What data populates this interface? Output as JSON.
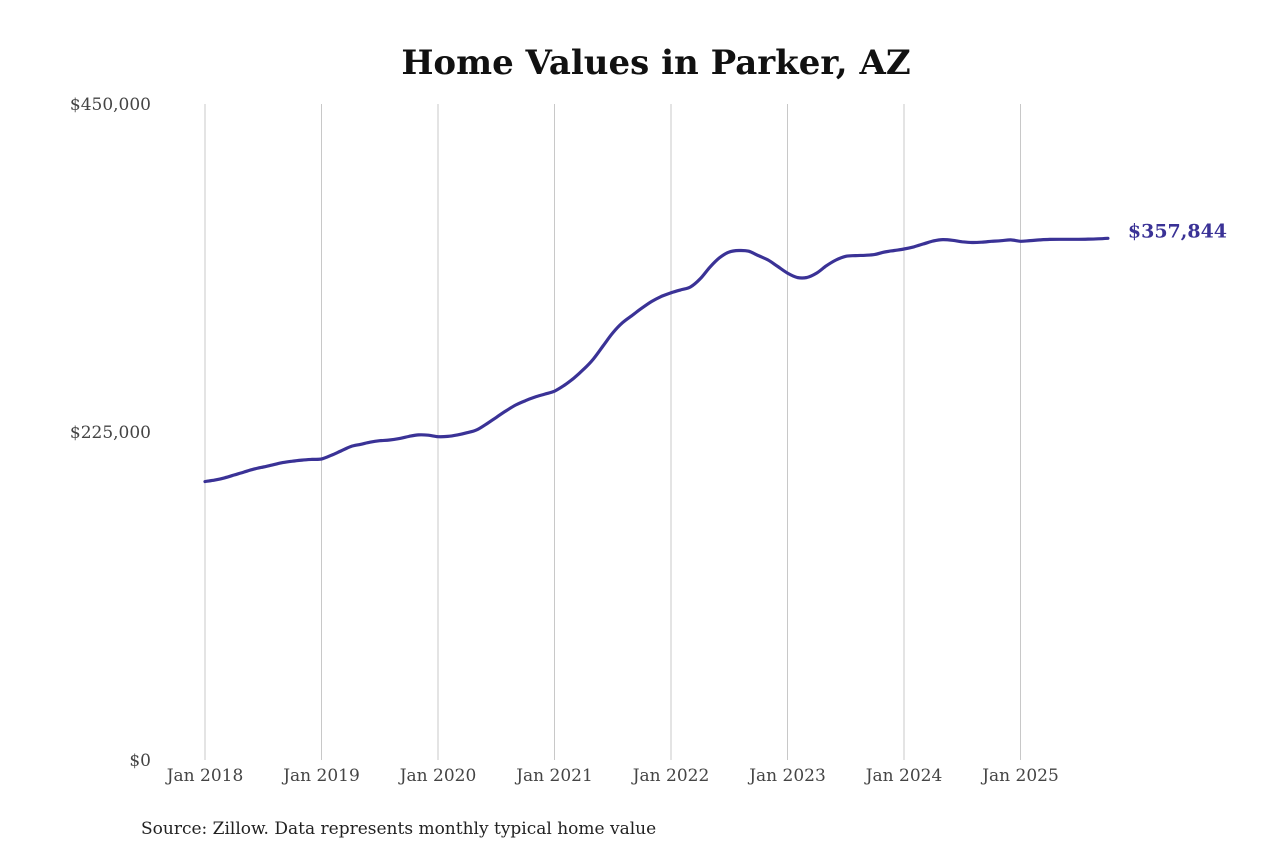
{
  "chart_data": {
    "type": "line",
    "title": "Home Values in Parker, AZ",
    "source": "Source: Zillow. Data represents monthly typical home value",
    "xlabel": "",
    "ylabel": "",
    "ylim": [
      0,
      450000
    ],
    "y_ticks": [
      0,
      225000,
      450000
    ],
    "y_tick_labels": [
      "$0",
      "$225,000",
      "$450,000"
    ],
    "x_ticks": [
      "2018-01",
      "2019-01",
      "2020-01",
      "2021-01",
      "2022-01",
      "2023-01",
      "2024-01",
      "2025-01"
    ],
    "x_tick_labels": [
      "Jan 2018",
      "Jan 2019",
      "Jan 2020",
      "Jan 2021",
      "Jan 2022",
      "Jan 2023",
      "Jan 2024",
      "Jan 2025"
    ],
    "grid": "vertical",
    "line_color": "#3a3296",
    "grid_color": "#c8c8c8",
    "end_label": "$357,844",
    "x": [
      "2018-01",
      "2018-02",
      "2018-03",
      "2018-04",
      "2018-05",
      "2018-06",
      "2018-07",
      "2018-08",
      "2018-09",
      "2018-10",
      "2018-11",
      "2018-12",
      "2019-01",
      "2019-02",
      "2019-03",
      "2019-04",
      "2019-05",
      "2019-06",
      "2019-07",
      "2019-08",
      "2019-09",
      "2019-10",
      "2019-11",
      "2019-12",
      "2020-01",
      "2020-02",
      "2020-03",
      "2020-04",
      "2020-05",
      "2020-06",
      "2020-07",
      "2020-08",
      "2020-09",
      "2020-10",
      "2020-11",
      "2020-12",
      "2021-01",
      "2021-02",
      "2021-03",
      "2021-04",
      "2021-05",
      "2021-06",
      "2021-07",
      "2021-08",
      "2021-09",
      "2021-10",
      "2021-11",
      "2021-12",
      "2022-01",
      "2022-02",
      "2022-03",
      "2022-04",
      "2022-05",
      "2022-06",
      "2022-07",
      "2022-08",
      "2022-09",
      "2022-10",
      "2022-11",
      "2022-12",
      "2023-01",
      "2023-02",
      "2023-03",
      "2023-04",
      "2023-05",
      "2023-06",
      "2023-07",
      "2023-08",
      "2023-09",
      "2023-10",
      "2023-11",
      "2023-12",
      "2024-01",
      "2024-02",
      "2024-03",
      "2024-04",
      "2024-05",
      "2024-06",
      "2024-07",
      "2024-08",
      "2024-09",
      "2024-10",
      "2024-11",
      "2024-12",
      "2025-01",
      "2025-02",
      "2025-03",
      "2025-04",
      "2025-05",
      "2025-06",
      "2025-07",
      "2025-08",
      "2025-09",
      "2025-10"
    ],
    "series": [
      {
        "values": [
          191000,
          192000,
          193500,
          195500,
          197500,
          199500,
          201000,
          202500,
          204000,
          205000,
          205700,
          206200,
          206500,
          209000,
          212000,
          215000,
          216500,
          218000,
          219000,
          219500,
          220500,
          222000,
          223000,
          222800,
          221800,
          222000,
          223000,
          224500,
          226500,
          230500,
          235000,
          239500,
          243500,
          246500,
          249000,
          251000,
          253000,
          257000,
          262000,
          268000,
          275000,
          284000,
          293000,
          300000,
          305000,
          310000,
          314500,
          318000,
          320500,
          322500,
          324500,
          330000,
          338000,
          344500,
          348500,
          349500,
          349000,
          346000,
          343000,
          338500,
          334000,
          331000,
          331000,
          334000,
          339000,
          343000,
          345500,
          346000,
          346200,
          346800,
          348500,
          349500,
          350500,
          352000,
          354000,
          356000,
          357000,
          356500,
          355500,
          355000,
          355200,
          355800,
          356200,
          356800,
          355800,
          356300,
          356800,
          357100,
          357200,
          357200,
          357200,
          357300,
          357500,
          357844
        ]
      }
    ]
  }
}
